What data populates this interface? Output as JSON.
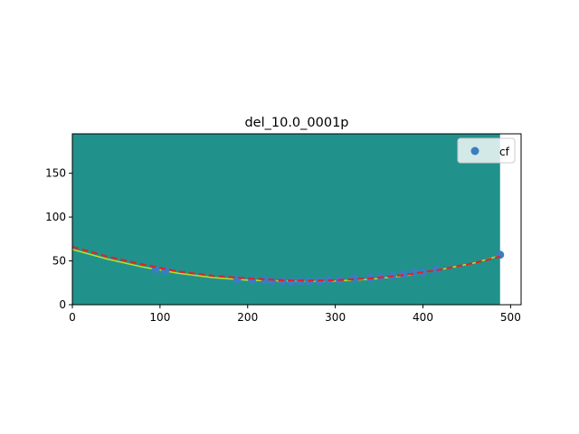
{
  "chart_data": {
    "type": "scatter",
    "title": "del_10.0_0001p",
    "xlabel": "",
    "ylabel": "",
    "xlim": [
      0,
      512
    ],
    "ylim": [
      0,
      195
    ],
    "image_extent": [
      0,
      488
    ],
    "x_ticks": [
      "0",
      "100",
      "200",
      "300",
      "400",
      "500"
    ],
    "x_tick_values": [
      0,
      100,
      200,
      300,
      400,
      500
    ],
    "y_ticks": [
      "0",
      "50",
      "100",
      "150"
    ],
    "y_tick_values": [
      0,
      50,
      100,
      150
    ],
    "legend": {
      "label": "cf",
      "placement": "top-right"
    },
    "colors": {
      "background": "#21918c",
      "points": "#3a7dc0",
      "fit_line": "#d62728",
      "trace_line": "#bddf26"
    },
    "series": [
      {
        "name": "cf",
        "type": "scatter",
        "x": [
          95,
          106,
          188,
          205,
          220,
          228,
          240,
          250,
          260,
          270,
          282,
          292,
          305,
          322,
          340,
          352,
          365,
          378,
          390,
          400,
          415,
          488
        ],
        "y": [
          40,
          39,
          29,
          28,
          28,
          27,
          27,
          26,
          27,
          27,
          27,
          28,
          28,
          30,
          31,
          32,
          33,
          35,
          37,
          37,
          40,
          57
        ]
      },
      {
        "type": "line",
        "style": "dashed",
        "x": [
          0,
          40,
          80,
          120,
          160,
          200,
          240,
          270,
          300,
          340,
          380,
          420,
          460,
          488
        ],
        "y": [
          66,
          55,
          46,
          38,
          33,
          30,
          28,
          27.5,
          28,
          30,
          34,
          40,
          48,
          55
        ]
      },
      {
        "type": "line",
        "style": "solid",
        "x": [
          0,
          40,
          80,
          120,
          160,
          200,
          240,
          270,
          300,
          340,
          380,
          420,
          460,
          488
        ],
        "y": [
          63,
          52,
          43,
          36,
          31,
          28,
          27,
          26.5,
          27,
          29,
          33,
          40,
          48,
          56
        ]
      }
    ]
  }
}
